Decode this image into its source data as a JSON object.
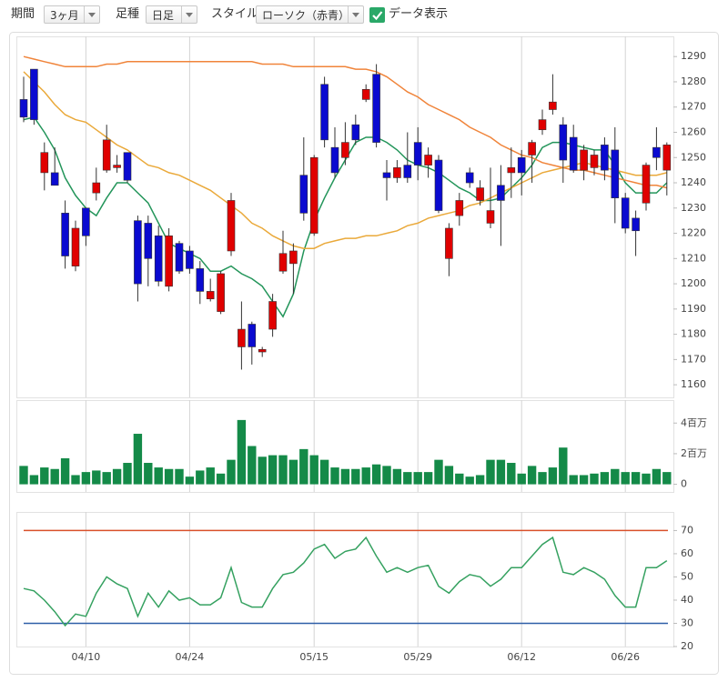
{
  "toolbar": {
    "period_label": "期間",
    "period": "3ヶ月",
    "bar_type_label": "足種",
    "bar_type": "日足",
    "style_label": "スタイル",
    "style": "ローソク（赤青）",
    "show_data": "データ表示"
  },
  "chart_data": [
    {
      "type": "candlestick",
      "up_color": "#e00000",
      "down_color": "#0a0ad0",
      "categories": [
        null,
        null,
        null,
        null,
        null,
        null,
        "04/10",
        null,
        null,
        null,
        null,
        null,
        null,
        null,
        null,
        null,
        "04/24",
        null,
        null,
        null,
        null,
        null,
        null,
        null,
        null,
        null,
        null,
        null,
        "05/15",
        null,
        null,
        null,
        null,
        null,
        null,
        null,
        null,
        null,
        "05/29",
        null,
        null,
        null,
        null,
        null,
        null,
        null,
        null,
        null,
        "06/12",
        null,
        null,
        null,
        null,
        null,
        null,
        null,
        null,
        null,
        "06/26",
        null,
        null,
        null,
        null
      ],
      "open": [
        1273,
        1285,
        1244,
        1244,
        1228,
        1207,
        1230,
        1236,
        1245,
        1246,
        1252,
        1225,
        1224,
        1219,
        1199,
        1216,
        1213,
        1206,
        1194,
        1189,
        1213,
        1175,
        1184,
        1173,
        1182,
        1205,
        1208,
        1243,
        1220,
        1279,
        1254,
        1250,
        1263,
        1273,
        1283,
        1244,
        1242,
        1247,
        1256,
        1247,
        1249,
        1210,
        1227,
        1244,
        1233,
        1224,
        1239,
        1244,
        1250,
        1251,
        1261,
        1269,
        1263,
        1258,
        1245,
        1246,
        1255,
        1253,
        1234,
        1226,
        1232,
        1254,
        1245
      ],
      "high": [
        1282,
        1285,
        1256,
        1254,
        1233,
        1225,
        1230,
        1246,
        1263,
        1251,
        1252,
        1227,
        1227,
        1223,
        1222,
        1217,
        1215,
        1209,
        1202,
        1205,
        1236,
        1193,
        1185,
        1175,
        1196,
        1221,
        1216,
        1258,
        1251,
        1282,
        1262,
        1264,
        1267,
        1279,
        1287,
        1249,
        1249,
        1260,
        1262,
        1254,
        1251,
        1224,
        1236,
        1246,
        1241,
        1246,
        1247,
        1254,
        1253,
        1257,
        1269,
        1283,
        1266,
        1263,
        1255,
        1253,
        1258,
        1262,
        1236,
        1229,
        1248,
        1262,
        1256
      ],
      "low": [
        1264,
        1263,
        1237,
        1239,
        1206,
        1205,
        1215,
        1233,
        1244,
        1244,
        1240,
        1193,
        1199,
        1199,
        1197,
        1204,
        1204,
        1192,
        1193,
        1188,
        1211,
        1166,
        1168,
        1171,
        1179,
        1204,
        1196,
        1225,
        1219,
        1254,
        1242,
        1247,
        1255,
        1272,
        1254,
        1233,
        1240,
        1240,
        1241,
        1242,
        1228,
        1203,
        1223,
        1238,
        1231,
        1222,
        1215,
        1234,
        1235,
        1240,
        1259,
        1267,
        1240,
        1244,
        1241,
        1243,
        1241,
        1224,
        1220,
        1211,
        1229,
        1245,
        1235
      ],
      "close": [
        1266,
        1265,
        1252,
        1239,
        1211,
        1222,
        1219,
        1240,
        1257,
        1247,
        1241,
        1200,
        1210,
        1201,
        1219,
        1205,
        1206,
        1197,
        1197,
        1204,
        1233,
        1182,
        1175,
        1174,
        1193,
        1212,
        1213,
        1228,
        1250,
        1257,
        1244,
        1256,
        1257,
        1277,
        1256,
        1242,
        1246,
        1242,
        1247,
        1251,
        1229,
        1222,
        1233,
        1240,
        1238,
        1229,
        1233,
        1246,
        1244,
        1256,
        1265,
        1272,
        1249,
        1245,
        1253,
        1251,
        1245,
        1234,
        1222,
        1221,
        1247,
        1250,
        1255
      ],
      "series": [
        {
          "color": "#23955a",
          "values": [
            1265,
            1266,
            1260,
            1253,
            1242,
            1235,
            1230,
            1227,
            1234,
            1240,
            1240,
            1236,
            1232,
            1224,
            1216,
            1214,
            1212,
            1210,
            1205,
            1205,
            1207,
            1204,
            1202,
            1199,
            1193,
            1187,
            1196,
            1213,
            1225,
            1234,
            1242,
            1249,
            1256,
            1258,
            1258,
            1256,
            1253,
            1249,
            1247,
            1246,
            1244,
            1241,
            1238,
            1236,
            1233,
            1233,
            1234,
            1238,
            1242,
            1247,
            1254,
            1256,
            1256,
            1255,
            1254,
            1253,
            1253,
            1247,
            1240,
            1236,
            1236,
            1236,
            1240
          ]
        },
        {
          "color": "#eaa93a",
          "values": [
            1284,
            1280,
            1276,
            1271,
            1267,
            1265,
            1264,
            1261,
            1258,
            1255,
            1253,
            1250,
            1247,
            1246,
            1244,
            1243,
            1241,
            1239,
            1237,
            1234,
            1231,
            1228,
            1224,
            1222,
            1219,
            1217,
            1215,
            1214,
            1214,
            1216,
            1217,
            1218,
            1218,
            1219,
            1219,
            1220,
            1221,
            1223,
            1224,
            1226,
            1227,
            1228,
            1229,
            1231,
            1232,
            1234,
            1236,
            1238,
            1240,
            1242,
            1244,
            1245,
            1246,
            1247,
            1248,
            1247,
            1246,
            1245,
            1244,
            1243,
            1243,
            1243,
            1244
          ]
        },
        {
          "color": "#f0843a",
          "values": [
            1290,
            1289,
            1288,
            1287,
            1286,
            1286,
            1286,
            1286,
            1287,
            1287,
            1288,
            1288,
            1288,
            1288,
            1288,
            1288,
            1288,
            1288,
            1288,
            1288,
            1288,
            1288,
            1288,
            1287,
            1287,
            1287,
            1286,
            1286,
            1286,
            1286,
            1286,
            1286,
            1285,
            1285,
            1284,
            1282,
            1279,
            1276,
            1274,
            1271,
            1269,
            1267,
            1265,
            1262,
            1260,
            1258,
            1255,
            1253,
            1251,
            1250,
            1248,
            1247,
            1246,
            1245,
            1245,
            1244,
            1243,
            1242,
            1241,
            1240,
            1239,
            1239,
            1238
          ]
        }
      ],
      "ylim": [
        1155,
        1298
      ],
      "yticks": [
        1160,
        1170,
        1180,
        1190,
        1200,
        1210,
        1220,
        1230,
        1240,
        1250,
        1260,
        1270,
        1280,
        1290
      ]
    },
    {
      "type": "bar",
      "color": "#148a48",
      "values": [
        1.2,
        0.6,
        1.1,
        1.0,
        1.7,
        0.6,
        0.8,
        0.9,
        0.8,
        1.0,
        1.4,
        3.3,
        1.4,
        1.1,
        1.0,
        1.0,
        0.5,
        0.9,
        1.1,
        0.7,
        1.6,
        4.2,
        2.5,
        1.8,
        1.9,
        1.9,
        1.6,
        2.3,
        1.9,
        1.6,
        1.1,
        1.0,
        1.0,
        1.1,
        1.3,
        1.2,
        1.0,
        0.8,
        0.8,
        0.8,
        1.6,
        1.2,
        0.7,
        0.5,
        0.6,
        1.6,
        1.6,
        1.4,
        0.7,
        1.2,
        0.8,
        1.1,
        2.4,
        0.6,
        0.6,
        0.7,
        0.8,
        1.0,
        0.8,
        0.8,
        0.7,
        1.0,
        0.8
      ],
      "ylim": [
        -0.5,
        5.5
      ],
      "yticks": [
        0,
        {
          "value": 2,
          "label": "2百万"
        },
        {
          "value": 4,
          "label": "4百万"
        }
      ]
    },
    {
      "type": "line",
      "series": [
        {
          "color": "#35a160",
          "values": [
            45,
            44,
            40,
            35,
            29,
            34,
            33,
            43,
            50,
            47,
            45,
            33,
            43,
            37,
            44,
            40,
            41,
            38,
            38,
            41,
            54,
            39,
            37,
            37,
            45,
            51,
            52,
            56,
            62,
            64,
            58,
            61,
            62,
            67,
            59,
            52,
            54,
            52,
            54,
            55,
            46,
            43,
            48,
            51,
            50,
            46,
            49,
            54,
            54,
            59,
            64,
            67,
            52,
            51,
            54,
            52,
            49,
            42,
            37,
            37,
            54,
            54,
            57
          ]
        }
      ],
      "hlines": [
        {
          "value": 70,
          "color": "#d9502a"
        },
        {
          "value": 30,
          "color": "#2e5fa8"
        }
      ],
      "ylim": [
        20,
        78
      ],
      "yticks": [
        20,
        30,
        40,
        50,
        60,
        70
      ]
    }
  ]
}
